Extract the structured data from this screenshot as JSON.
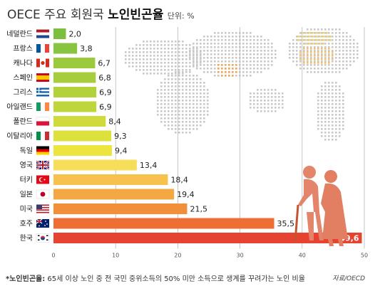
{
  "title": {
    "part1": "OECE 주요 회원국",
    "part2": "노인빈곤율",
    "unit": "단위: %"
  },
  "footnote": {
    "term": "*노인빈곤율:",
    "text": "65세 이상 노인 중 전 국민 중위소득의 50% 미만 소득으로 생계를 꾸려가는 노인 비율"
  },
  "source": "자료/OECD",
  "chart_data": {
    "type": "bar",
    "orientation": "horizontal",
    "categories": [
      "네덜란드",
      "프랑스",
      "캐나다",
      "스페인",
      "그리스",
      "아일랜드",
      "폴란드",
      "이탈리아",
      "독일",
      "영국",
      "터키",
      "일본",
      "미국",
      "호주",
      "한국"
    ],
    "values": [
      2.0,
      3.8,
      6.7,
      6.8,
      6.9,
      6.9,
      8.4,
      9.3,
      9.4,
      13.4,
      18.4,
      19.4,
      21.5,
      35.5,
      49.6
    ],
    "value_labels": [
      "2,0",
      "3,8",
      "6,7",
      "6,8",
      "6,9",
      "6,9",
      "8,4",
      "9,3",
      "9,4",
      "13,4",
      "18,4",
      "19,4",
      "21,5",
      "35,5",
      "49,6"
    ],
    "bar_colors": [
      "#7cbf3e",
      "#88c43f",
      "#9bca3d",
      "#a6cd3c",
      "#b2d13b",
      "#bfd63a",
      "#cedb3a",
      "#dde13b",
      "#ece53f",
      "#f6dd5a",
      "#f6c14c",
      "#f4a843",
      "#f28f3b",
      "#ee6e33",
      "#e64430"
    ],
    "flags": [
      "netherlands",
      "france",
      "canada",
      "spain",
      "greece",
      "ireland",
      "poland",
      "italy",
      "germany",
      "uk",
      "turkey",
      "japan",
      "usa",
      "australia",
      "korea"
    ],
    "xlim": [
      0,
      50
    ],
    "xticks": [
      "0",
      "10",
      "20",
      "30",
      "40",
      "50"
    ],
    "grid": true
  }
}
